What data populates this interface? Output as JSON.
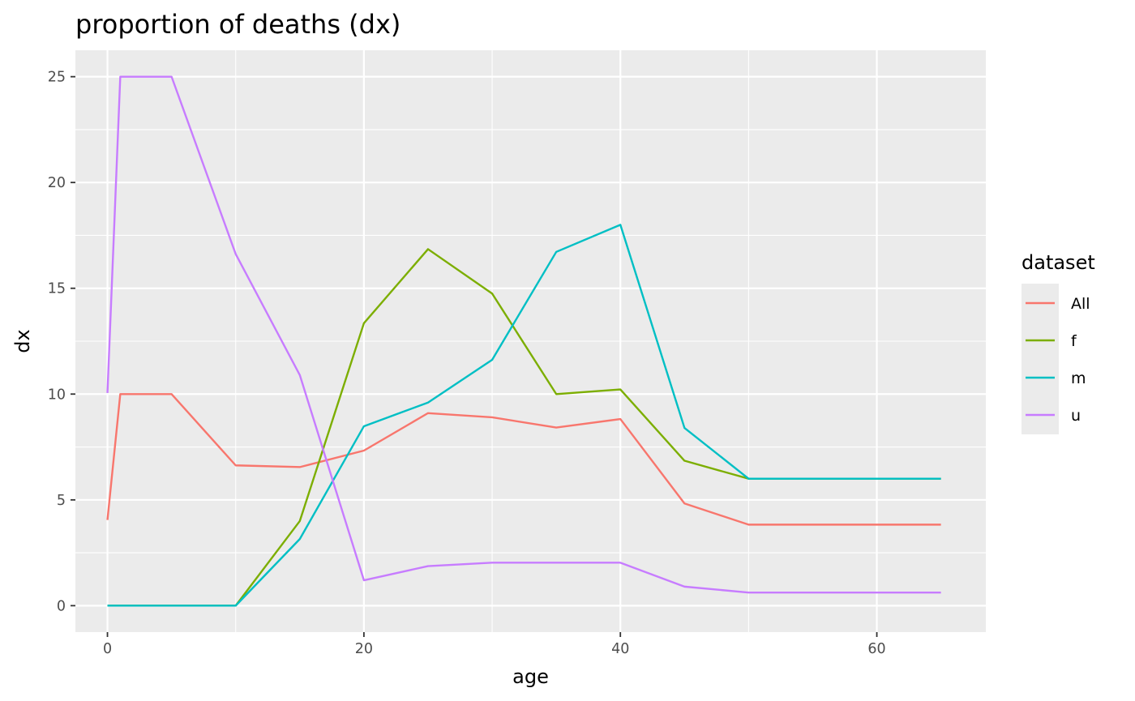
{
  "chart_data": {
    "type": "line",
    "title": "proportion of deaths (dx)",
    "xlabel": "age",
    "ylabel": "dx",
    "xlim": [
      -2.5,
      68.5
    ],
    "ylim": [
      -1.25,
      26.25
    ],
    "x_ticks": [
      0,
      20,
      40,
      60
    ],
    "y_ticks": [
      0,
      5,
      10,
      15,
      20,
      25
    ],
    "grid": true,
    "legend": {
      "title": "dataset",
      "position": "right"
    },
    "series": [
      {
        "name": "All",
        "color": "#F8766D",
        "x": [
          0,
          1,
          5,
          10,
          15,
          20,
          25,
          30,
          35,
          40,
          45,
          50,
          55,
          60,
          65
        ],
        "y": [
          4.05,
          10.0,
          10.0,
          6.63,
          6.55,
          7.33,
          9.1,
          8.9,
          8.42,
          8.82,
          4.83,
          3.83,
          3.83,
          3.83,
          3.83
        ]
      },
      {
        "name": "f",
        "color": "#7CAE00",
        "x": [
          0,
          1,
          5,
          10,
          15,
          20,
          25,
          30,
          35,
          40,
          45,
          50,
          55,
          60,
          65
        ],
        "y": [
          0,
          0,
          0,
          0,
          4.0,
          13.35,
          16.85,
          14.75,
          10.0,
          10.22,
          6.85,
          6.0,
          6.0,
          6.0,
          6.0
        ]
      },
      {
        "name": "m",
        "color": "#00BFC4",
        "x": [
          0,
          1,
          5,
          10,
          15,
          20,
          25,
          30,
          35,
          40,
          45,
          50,
          55,
          60,
          65
        ],
        "y": [
          0,
          0,
          0,
          0,
          3.15,
          8.48,
          9.6,
          11.62,
          16.72,
          18.0,
          8.4,
          6.0,
          6.0,
          6.0,
          6.0
        ]
      },
      {
        "name": "u",
        "color": "#C77CFF",
        "x": [
          0,
          1,
          5,
          10,
          15,
          20,
          25,
          30,
          35,
          40,
          45,
          50,
          55,
          60,
          65
        ],
        "y": [
          10.05,
          25.0,
          25.0,
          16.62,
          10.9,
          1.2,
          1.87,
          2.03,
          2.03,
          2.03,
          0.9,
          0.62,
          0.62,
          0.62,
          0.62
        ]
      }
    ]
  }
}
